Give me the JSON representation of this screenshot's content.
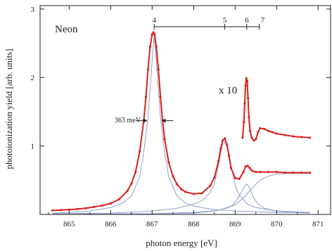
{
  "chart_data": {
    "type": "line",
    "xlabel": "photon energy [eV]",
    "ylabel": "photoionization yield [arb. units]",
    "xlim": [
      864.3,
      871.3
    ],
    "ylim": [
      0,
      3.05
    ],
    "xticks": [
      865,
      866,
      867,
      868,
      869,
      870,
      871
    ],
    "yticks": [
      1,
      2,
      3
    ],
    "grid": false,
    "legend": "none",
    "colors": {
      "data": "#d9221c",
      "fit": "#8f9fc8",
      "axis": "#222222"
    },
    "annotations": {
      "panel_label": "Neon",
      "fwhm_label": "363 meV",
      "scale_label": "x 10",
      "series_marks": [
        {
          "n": "4",
          "x": 867.05
        },
        {
          "n": "5",
          "x": 868.75
        },
        {
          "n": "6",
          "x": 869.28
        },
        {
          "n": "7",
          "x": 869.58
        }
      ]
    },
    "fwhm": {
      "x_left": 866.88,
      "x_right": 867.24,
      "y": 1.37
    },
    "data_series": {
      "x": [
        864.6,
        864.8,
        865,
        865.2,
        865.4,
        865.6,
        865.8,
        866,
        866.2,
        866.4,
        866.5,
        866.6,
        866.7,
        866.8,
        866.85,
        866.9,
        866.95,
        867,
        867.03,
        867.06,
        867.1,
        867.15,
        867.2,
        867.25,
        867.3,
        867.4,
        867.5,
        867.6,
        867.7,
        867.8,
        868,
        868.2,
        868.4,
        868.5,
        868.6,
        868.65,
        868.7,
        868.75,
        868.8,
        868.85,
        868.9,
        869,
        869.1,
        869.2,
        869.25,
        869.3,
        869.35,
        869.4,
        869.5,
        869.6,
        869.8,
        870,
        870.2,
        870.4,
        870.6,
        870.8
      ],
      "y": [
        0.06,
        0.065,
        0.07,
        0.08,
        0.09,
        0.11,
        0.13,
        0.16,
        0.22,
        0.34,
        0.45,
        0.62,
        0.92,
        1.38,
        1.72,
        2.12,
        2.45,
        2.63,
        2.66,
        2.63,
        2.45,
        2.12,
        1.72,
        1.38,
        1.1,
        0.76,
        0.56,
        0.44,
        0.37,
        0.33,
        0.3,
        0.31,
        0.42,
        0.54,
        0.78,
        0.96,
        1.08,
        1.11,
        1.02,
        0.86,
        0.68,
        0.53,
        0.52,
        0.62,
        0.7,
        0.71,
        0.68,
        0.64,
        0.62,
        0.62,
        0.62,
        0.62,
        0.61,
        0.61,
        0.61,
        0.61
      ]
    },
    "x10_series": {
      "x": [
        869.18,
        869.21,
        869.23,
        869.25,
        869.27,
        869.29,
        869.31,
        869.33,
        869.36,
        869.4,
        869.45,
        869.5,
        869.55,
        869.6,
        869.7,
        869.8,
        869.9,
        870,
        870.2,
        870.4,
        870.6,
        870.8
      ],
      "y": [
        1.12,
        1.35,
        1.62,
        1.88,
        1.99,
        1.95,
        1.7,
        1.42,
        1.22,
        1.12,
        1.08,
        1.1,
        1.2,
        1.26,
        1.25,
        1.22,
        1.2,
        1.18,
        1.16,
        1.14,
        1.13,
        1.12
      ]
    },
    "fit_components": [
      {
        "x": [
          864.6,
          865,
          865.5,
          866,
          866.3,
          866.5,
          866.7,
          866.8,
          866.9,
          866.95,
          867,
          867.05,
          867.1,
          867.15,
          867.2,
          867.3,
          867.4,
          867.6,
          867.8,
          868,
          868.5,
          869,
          869.5,
          870,
          870.5,
          870.8
        ],
        "y": [
          0.02,
          0.03,
          0.05,
          0.1,
          0.17,
          0.27,
          0.55,
          0.92,
          1.42,
          1.82,
          2.25,
          2.62,
          2.25,
          1.82,
          1.42,
          0.92,
          0.55,
          0.27,
          0.17,
          0.12,
          0.07,
          0.05,
          0.04,
          0.03,
          0.03,
          0.02
        ]
      },
      {
        "x": [
          864.6,
          866,
          867,
          867.6,
          868,
          868.2,
          868.4,
          868.5,
          868.6,
          868.65,
          868.7,
          868.75,
          868.8,
          868.85,
          868.9,
          869,
          869.1,
          869.3,
          869.5,
          870,
          870.8
        ],
        "y": [
          0.01,
          0.02,
          0.05,
          0.09,
          0.15,
          0.2,
          0.32,
          0.45,
          0.72,
          0.9,
          1.02,
          1.05,
          1.02,
          0.9,
          0.72,
          0.42,
          0.28,
          0.15,
          0.1,
          0.05,
          0.03
        ]
      },
      {
        "x": [
          864.6,
          867,
          868,
          868.6,
          868.9,
          869,
          869.1,
          869.2,
          869.25,
          869.28,
          869.32,
          869.38,
          869.45,
          869.55,
          869.7,
          870,
          870.4,
          870.8
        ],
        "y": [
          0.0,
          0.01,
          0.03,
          0.06,
          0.12,
          0.18,
          0.27,
          0.38,
          0.43,
          0.44,
          0.42,
          0.34,
          0.24,
          0.15,
          0.09,
          0.05,
          0.03,
          0.02
        ]
      },
      {
        "x": [
          864.6,
          867,
          868,
          868.5,
          868.8,
          869,
          869.2,
          869.4,
          869.6,
          869.8,
          870,
          870.3,
          870.6,
          870.8
        ],
        "y": [
          0.0,
          0.01,
          0.02,
          0.05,
          0.09,
          0.14,
          0.24,
          0.38,
          0.5,
          0.56,
          0.59,
          0.6,
          0.6,
          0.6
        ]
      }
    ]
  }
}
